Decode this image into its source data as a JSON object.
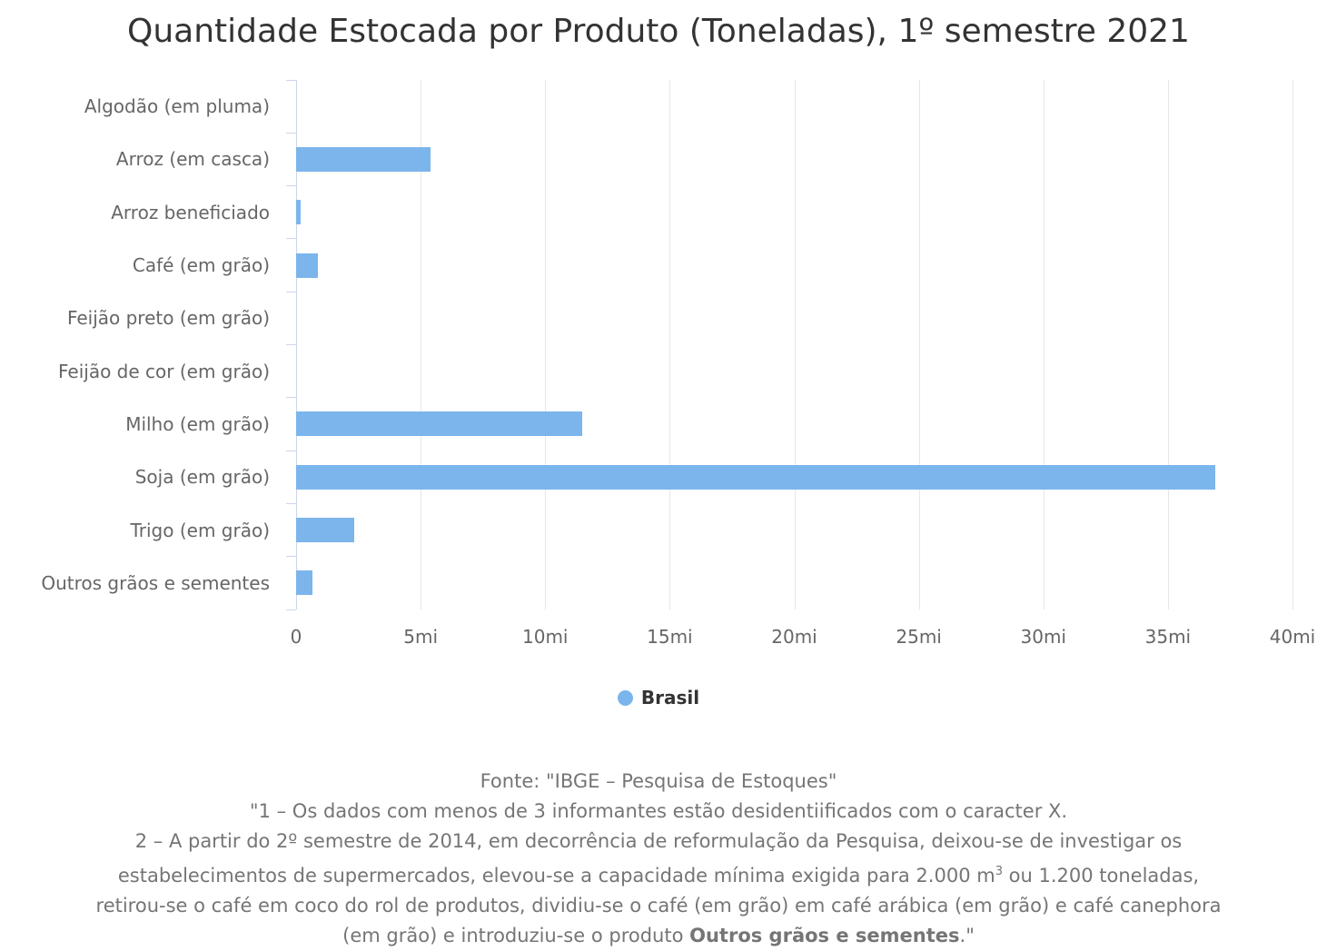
{
  "title": "Quantidade Estocada por Produto (Toneladas), 1º semestre 2021",
  "legend": {
    "label": "Brasil",
    "marker_color": "#7cb5ec"
  },
  "colors": {
    "bar": "#7cb5ec",
    "axis_line": "#ccd6eb",
    "gridline": "#e6e6e6",
    "title_text": "#333333",
    "axis_label_text": "#666666",
    "footer_text": "#757575"
  },
  "chart_data": {
    "type": "bar",
    "orientation": "horizontal",
    "title": "Quantidade Estocada por Produto (Toneladas), 1º semestre 2021",
    "categories": [
      "Algodão (em pluma)",
      "Arroz (em casca)",
      "Arroz beneficiado",
      "Café (em grão)",
      "Feijão preto (em grão)",
      "Feijão de cor (em grão)",
      "Milho (em grão)",
      "Soja (em grão)",
      "Trigo (em grão)",
      "Outros grãos e sementes"
    ],
    "series": [
      {
        "name": "Brasil",
        "values": [
          0,
          5.4,
          0.17,
          0.88,
          0,
          0,
          11.5,
          36.9,
          2.35,
          0.65
        ]
      }
    ],
    "value_unit": "milhões de toneladas",
    "xlim": [
      0,
      40
    ],
    "x_ticks": [
      0,
      5,
      10,
      15,
      20,
      25,
      30,
      35,
      40
    ],
    "x_tick_labels": [
      "0",
      "5mi",
      "10mi",
      "15mi",
      "20mi",
      "25mi",
      "30mi",
      "35mi",
      "40mi"
    ],
    "grid": true,
    "legend_position": "bottom"
  },
  "footer": {
    "line1": "Fonte: \"IBGE – Pesquisa de Estoques\"",
    "line2": "\"1 – Os dados com menos de 3 informantes estão desidentiificados com o caracter X.",
    "line3": "2 – A partir do 2º semestre de 2014, em decorrência de reformulação da Pesquisa, deixou-se de investigar os",
    "line4_pre": "estabelecimentos de supermercados, elevou-se a capacidade mínima exigida para 2.000 m",
    "line4_sup": "3",
    "line4_post": " ou 1.200 toneladas,",
    "line5": "retirou-se o café em coco do rol de produtos, dividiu-se o café (em grão) em café arábica (em grão) e café canephora",
    "line6_pre": "(em grão) e introduziu-se o produto ",
    "line6_bold": "Outros grãos e sementes",
    "line6_post": ".\""
  }
}
